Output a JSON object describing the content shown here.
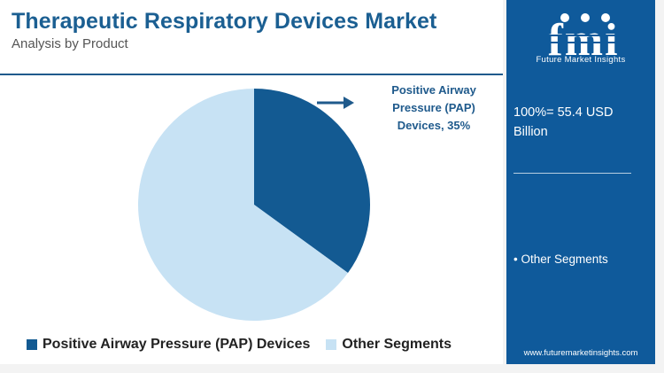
{
  "header": {
    "title": "Therapeutic Respiratory Devices Market",
    "subtitle": "Analysis by Product"
  },
  "callout": {
    "line1": "Positive Airway",
    "line2": "Pressure (PAP)",
    "line3": "Devices, 35%"
  },
  "legend": [
    {
      "label": "Positive Airway Pressure (PAP) Devices",
      "color": "#135a92"
    },
    {
      "label": "Other Segments",
      "color": "#c7e2f4"
    }
  ],
  "panel": {
    "logo_text": "fmi",
    "brand": "Future Market Insights",
    "total_line1": "100%= 55.4 USD",
    "total_line2": "Billion",
    "segment_item": "• Other Segments",
    "url": "www.futuremarketinsights.com",
    "colors": {
      "panel_bg": "#0f5a9b",
      "accent": "#1b5f92"
    }
  },
  "chart_data": {
    "type": "pie",
    "categories": [
      "Positive Airway Pressure (PAP) Devices",
      "Other Segments"
    ],
    "values": [
      35,
      65
    ],
    "unit": "%",
    "colors": [
      "#135a92",
      "#c7e2f4"
    ],
    "legend_position": "bottom"
  }
}
